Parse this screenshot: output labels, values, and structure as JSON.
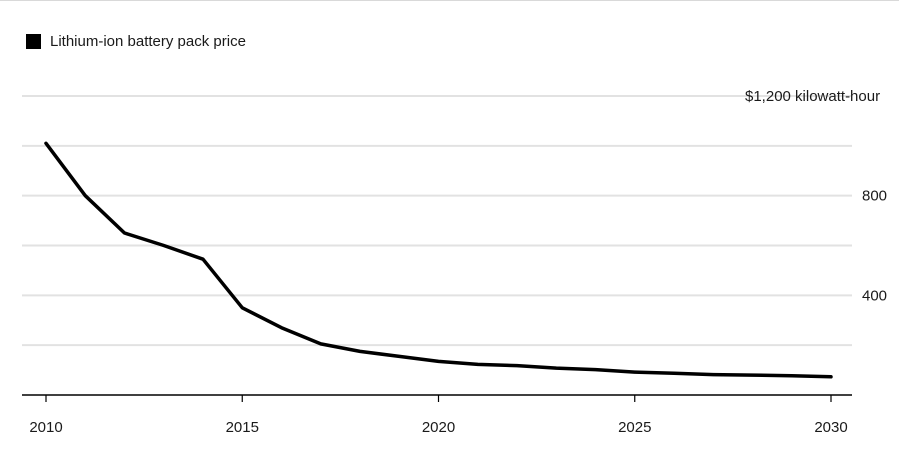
{
  "chart_data": {
    "type": "line",
    "title": "",
    "xlabel": "",
    "ylabel": "",
    "xlim": [
      2010,
      2030
    ],
    "ylim": [
      0,
      1200
    ],
    "x_ticks": [
      {
        "value": 2010,
        "label": "2010"
      },
      {
        "value": 2015,
        "label": "2015"
      },
      {
        "value": 2020,
        "label": "2020"
      },
      {
        "value": 2025,
        "label": "2025"
      },
      {
        "value": 2030,
        "label": "2030"
      }
    ],
    "y_ticks": [
      {
        "value": 1200,
        "label": "$1,200 kilowatt-hour"
      },
      {
        "value": 800,
        "label": "800"
      },
      {
        "value": 400,
        "label": "400"
      }
    ],
    "y_gridlines": [
      200,
      400,
      600,
      800,
      1000,
      1200
    ],
    "grid": true,
    "legend_position": "top-left",
    "series": [
      {
        "name": "Lithium-ion battery pack price",
        "color": "#000000",
        "x": [
          2010,
          2011,
          2012,
          2013,
          2014,
          2015,
          2016,
          2017,
          2018,
          2019,
          2020,
          2021,
          2022,
          2023,
          2024,
          2025,
          2026,
          2027,
          2028,
          2029,
          2030
        ],
        "y": [
          1010,
          800,
          650,
          600,
          545,
          350,
          270,
          205,
          175,
          155,
          135,
          123,
          118,
          108,
          102,
          92,
          87,
          82,
          80,
          77,
          73
        ]
      }
    ]
  }
}
